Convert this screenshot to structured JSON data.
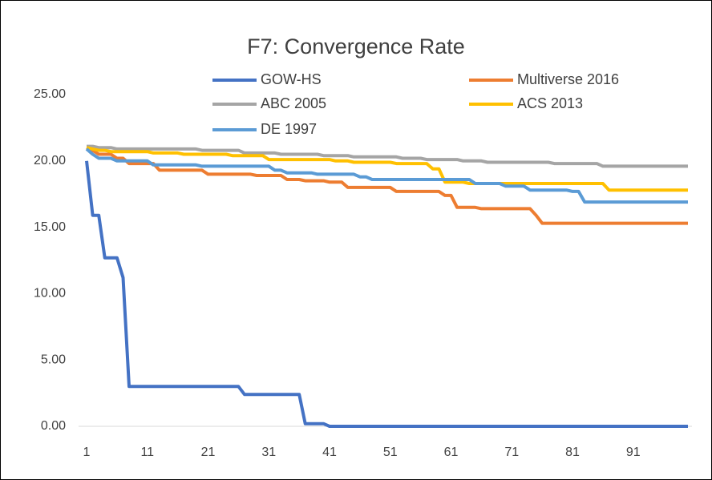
{
  "chart_data": {
    "type": "line",
    "title": "F7: Convergence Rate",
    "x": [
      1,
      2,
      3,
      4,
      5,
      6,
      7,
      8,
      9,
      10,
      11,
      12,
      13,
      14,
      15,
      16,
      17,
      18,
      19,
      20,
      21,
      22,
      23,
      24,
      25,
      26,
      27,
      28,
      29,
      30,
      31,
      32,
      33,
      34,
      35,
      36,
      37,
      38,
      39,
      40,
      41,
      42,
      43,
      44,
      45,
      46,
      47,
      48,
      49,
      50,
      51,
      52,
      53,
      54,
      55,
      56,
      57,
      58,
      59,
      60,
      61,
      62,
      63,
      64,
      65,
      66,
      67,
      68,
      69,
      70,
      71,
      72,
      73,
      74,
      75,
      76,
      77,
      78,
      79,
      80,
      81,
      82,
      83,
      84,
      85,
      86,
      87,
      88,
      89,
      90,
      91,
      92,
      93,
      94,
      95,
      96,
      97,
      98,
      99,
      100
    ],
    "xlim": [
      1,
      100
    ],
    "xticks": [
      1,
      11,
      21,
      31,
      41,
      51,
      61,
      71,
      81,
      91
    ],
    "ylim": [
      0,
      25
    ],
    "yticks": [
      {
        "value": 0,
        "label": "0.00"
      },
      {
        "value": 5,
        "label": "5.00"
      },
      {
        "value": 10,
        "label": "10.00"
      },
      {
        "value": 15,
        "label": "15.00"
      },
      {
        "value": 20,
        "label": "20.00"
      },
      {
        "value": 25,
        "label": "25.00"
      }
    ],
    "series": [
      {
        "name": "GOW-HS",
        "color": "#4472c4",
        "values": [
          20,
          15.9,
          15.9,
          12.7,
          12.7,
          12.7,
          11.2,
          3,
          3,
          3,
          3,
          3,
          3,
          3,
          3,
          3,
          3,
          3,
          3,
          3,
          3,
          3,
          3,
          3,
          3,
          3,
          2.4,
          2.4,
          2.4,
          2.4,
          2.4,
          2.4,
          2.4,
          2.4,
          2.4,
          2.4,
          0.2,
          0.2,
          0.2,
          0.2,
          0,
          0,
          0,
          0,
          0,
          0,
          0,
          0,
          0,
          0,
          0,
          0,
          0,
          0,
          0,
          0,
          0,
          0,
          0,
          0,
          0,
          0,
          0,
          0,
          0,
          0,
          0,
          0,
          0,
          0,
          0,
          0,
          0,
          0,
          0,
          0,
          0,
          0,
          0,
          0,
          0,
          0,
          0,
          0,
          0,
          0,
          0,
          0,
          0,
          0,
          0,
          0,
          0,
          0,
          0,
          0,
          0,
          0,
          0,
          0
        ]
      },
      {
        "name": "Multiverse 2016",
        "color": "#ed7d31",
        "values": [
          21,
          20.8,
          20.5,
          20.5,
          20.5,
          20.2,
          20.2,
          19.8,
          19.8,
          19.8,
          19.8,
          19.8,
          19.3,
          19.3,
          19.3,
          19.3,
          19.3,
          19.3,
          19.3,
          19.3,
          19,
          19,
          19,
          19,
          19,
          19,
          19,
          19,
          18.9,
          18.9,
          18.9,
          18.9,
          18.9,
          18.6,
          18.6,
          18.6,
          18.5,
          18.5,
          18.5,
          18.5,
          18.4,
          18.4,
          18.4,
          18,
          18,
          18,
          18,
          18,
          18,
          18,
          18,
          17.7,
          17.7,
          17.7,
          17.7,
          17.7,
          17.7,
          17.7,
          17.7,
          17.4,
          17.4,
          16.5,
          16.5,
          16.5,
          16.5,
          16.4,
          16.4,
          16.4,
          16.4,
          16.4,
          16.4,
          16.4,
          16.4,
          16.4,
          15.9,
          15.3,
          15.3,
          15.3,
          15.3,
          15.3,
          15.3,
          15.3,
          15.3,
          15.3,
          15.3,
          15.3,
          15.3,
          15.3,
          15.3,
          15.3,
          15.3,
          15.3,
          15.3,
          15.3,
          15.3,
          15.3,
          15.3,
          15.3,
          15.3,
          15.3
        ]
      },
      {
        "name": "ABC 2005",
        "color": "#a5a5a5",
        "values": [
          21.1,
          21.1,
          21,
          21,
          21,
          20.9,
          20.9,
          20.9,
          20.9,
          20.9,
          20.9,
          20.9,
          20.9,
          20.9,
          20.9,
          20.9,
          20.9,
          20.9,
          20.9,
          20.8,
          20.8,
          20.8,
          20.8,
          20.8,
          20.8,
          20.8,
          20.6,
          20.6,
          20.6,
          20.6,
          20.6,
          20.6,
          20.5,
          20.5,
          20.5,
          20.5,
          20.5,
          20.5,
          20.5,
          20.4,
          20.4,
          20.4,
          20.4,
          20.4,
          20.3,
          20.3,
          20.3,
          20.3,
          20.3,
          20.3,
          20.3,
          20.3,
          20.2,
          20.2,
          20.2,
          20.2,
          20.1,
          20.1,
          20.1,
          20.1,
          20.1,
          20.1,
          20,
          20,
          20,
          20,
          19.9,
          19.9,
          19.9,
          19.9,
          19.9,
          19.9,
          19.9,
          19.9,
          19.9,
          19.9,
          19.9,
          19.8,
          19.8,
          19.8,
          19.8,
          19.8,
          19.8,
          19.8,
          19.8,
          19.6,
          19.6,
          19.6,
          19.6,
          19.6,
          19.6,
          19.6,
          19.6,
          19.6,
          19.6,
          19.6,
          19.6,
          19.6,
          19.6,
          19.6
        ]
      },
      {
        "name": "ACS 2013",
        "color": "#ffc000",
        "values": [
          21,
          20.9,
          20.8,
          20.8,
          20.7,
          20.7,
          20.7,
          20.7,
          20.7,
          20.7,
          20.7,
          20.6,
          20.6,
          20.6,
          20.6,
          20.6,
          20.5,
          20.5,
          20.5,
          20.5,
          20.5,
          20.5,
          20.5,
          20.5,
          20.4,
          20.4,
          20.4,
          20.4,
          20.4,
          20.4,
          20.1,
          20.1,
          20.1,
          20.1,
          20.1,
          20.1,
          20.1,
          20.1,
          20.1,
          20.1,
          20.1,
          20,
          20,
          20,
          19.9,
          19.9,
          19.9,
          19.9,
          19.9,
          19.9,
          19.9,
          19.8,
          19.8,
          19.8,
          19.8,
          19.8,
          19.8,
          19.4,
          19.4,
          18.4,
          18.4,
          18.4,
          18.4,
          18.3,
          18.3,
          18.3,
          18.3,
          18.3,
          18.3,
          18.3,
          18.3,
          18.3,
          18.3,
          18.3,
          18.3,
          18.3,
          18.3,
          18.3,
          18.3,
          18.3,
          18.3,
          18.3,
          18.3,
          18.3,
          18.3,
          18.3,
          17.8,
          17.8,
          17.8,
          17.8,
          17.8,
          17.8,
          17.8,
          17.8,
          17.8,
          17.8,
          17.8,
          17.8,
          17.8,
          17.8
        ]
      },
      {
        "name": "DE 1997",
        "color": "#5b9bd5",
        "values": [
          20.9,
          20.5,
          20.2,
          20.2,
          20.2,
          20,
          20,
          20,
          20,
          20,
          20,
          19.7,
          19.7,
          19.7,
          19.7,
          19.7,
          19.7,
          19.7,
          19.7,
          19.6,
          19.6,
          19.6,
          19.6,
          19.6,
          19.6,
          19.6,
          19.6,
          19.6,
          19.6,
          19.6,
          19.6,
          19.3,
          19.3,
          19.1,
          19.1,
          19.1,
          19.1,
          19.1,
          19,
          19,
          19,
          19,
          19,
          19,
          19,
          18.8,
          18.8,
          18.6,
          18.6,
          18.6,
          18.6,
          18.6,
          18.6,
          18.6,
          18.6,
          18.6,
          18.6,
          18.6,
          18.6,
          18.6,
          18.6,
          18.6,
          18.6,
          18.6,
          18.3,
          18.3,
          18.3,
          18.3,
          18.3,
          18.1,
          18.1,
          18.1,
          18.1,
          17.8,
          17.8,
          17.8,
          17.8,
          17.8,
          17.8,
          17.8,
          17.7,
          17.7,
          16.9,
          16.9,
          16.9,
          16.9,
          16.9,
          16.9,
          16.9,
          16.9,
          16.9,
          16.9,
          16.9,
          16.9,
          16.9,
          16.9,
          16.9,
          16.9,
          16.9,
          16.9
        ]
      }
    ]
  }
}
